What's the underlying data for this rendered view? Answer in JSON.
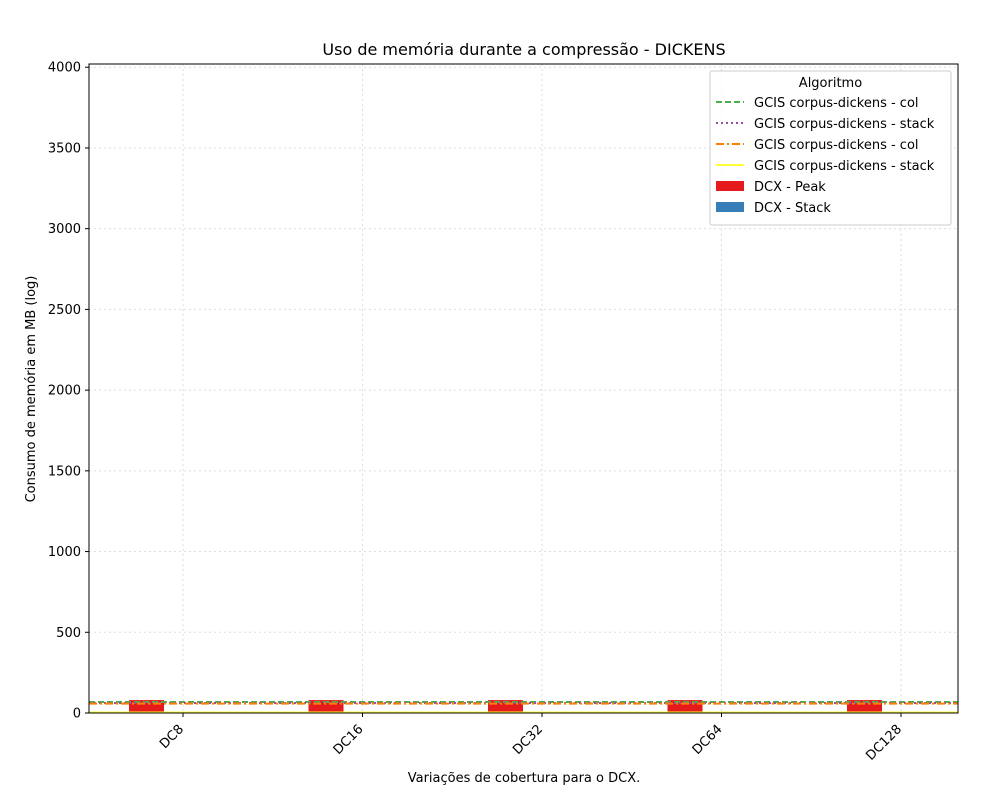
{
  "chart_data": {
    "type": "bar",
    "title": "Uso de memória durante a compressão -  DICKENS",
    "xlabel": "Variações de cobertura para o DCX.",
    "ylabel": "Consumo de memória em MB (log)",
    "categories": [
      "DC8",
      "DC16",
      "DC32",
      "DC64",
      "DC128"
    ],
    "ylim": [
      0,
      4020
    ],
    "yticks": [
      0,
      500,
      1000,
      1500,
      2000,
      2500,
      3000,
      3500,
      4000
    ],
    "grid": true,
    "legend": {
      "title": "Algoritmo",
      "placement": "top-right"
    },
    "bar_series": [
      {
        "name": "DCX - Peak",
        "color": "#e41a1c",
        "values": [
          80,
          80,
          80,
          80,
          80
        ]
      },
      {
        "name": "DCX - Stack",
        "color": "#377eb8",
        "values": [
          4,
          4,
          4,
          4,
          4
        ]
      }
    ],
    "line_series": [
      {
        "name": "GCIS corpus-dickens - col",
        "color": "#4daf4a",
        "style": "dashed",
        "value": 68
      },
      {
        "name": "GCIS corpus-dickens - stack",
        "color": "#984ea3",
        "style": "dotted",
        "value": 62
      },
      {
        "name": "GCIS corpus-dickens - col",
        "color": "#ff7f00",
        "style": "dashdot",
        "value": 58
      },
      {
        "name": "GCIS corpus-dickens - stack",
        "color": "#ffff33",
        "style": "solid",
        "value": 3
      }
    ],
    "legend_order": [
      "line:0",
      "line:1",
      "line:2",
      "line:3",
      "bar:0",
      "bar:1"
    ]
  }
}
